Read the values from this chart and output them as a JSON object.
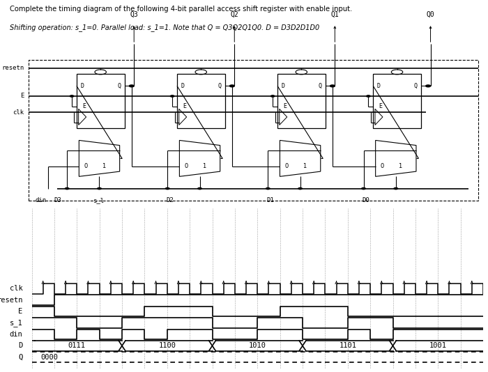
{
  "title_line1": "Complete the timing diagram of the following 4-bit parallel access shift register with enable input.",
  "title_line2": "Shifting operation: s_1=0. Parallel load: s_1=1. Note that Q = Q3Q2Q1Q0. D = D3D2D1D0",
  "q_labels": [
    "Q3",
    "Q2",
    "Q1",
    "Q0"
  ],
  "bottom_labels": [
    "din",
    "D3",
    "s_l",
    "D2",
    "D1",
    "D0"
  ],
  "timing": {
    "signals": [
      "clk",
      "resetn",
      "E",
      "s_1",
      "din",
      "D",
      "Q"
    ],
    "n_cols": 20,
    "clk_half_period": 0.5,
    "E_trans": [
      0,
      1,
      5,
      8,
      11,
      14
    ],
    "E_vals": [
      1,
      0,
      1,
      0,
      1,
      0
    ],
    "s1_trans": [
      0,
      2,
      4,
      8,
      10,
      12,
      14,
      16
    ],
    "s1_vals": [
      1,
      0,
      1,
      0,
      1,
      0,
      1,
      0
    ],
    "din_trans": [
      0,
      1,
      2,
      3,
      4,
      5,
      6,
      8,
      10,
      12,
      14,
      15,
      16
    ],
    "din_vals": [
      1,
      0,
      1,
      0,
      1,
      0,
      1,
      0,
      1,
      0,
      1,
      0,
      1
    ],
    "D_segments": [
      {
        "start": 0,
        "end": 4,
        "label": "0111"
      },
      {
        "start": 4,
        "end": 8,
        "label": "1100"
      },
      {
        "start": 8,
        "end": 12,
        "label": "1010"
      },
      {
        "start": 12,
        "end": 16,
        "label": "1101"
      },
      {
        "start": 16,
        "end": 20,
        "label": "1001"
      }
    ],
    "Q_label": "0000"
  }
}
